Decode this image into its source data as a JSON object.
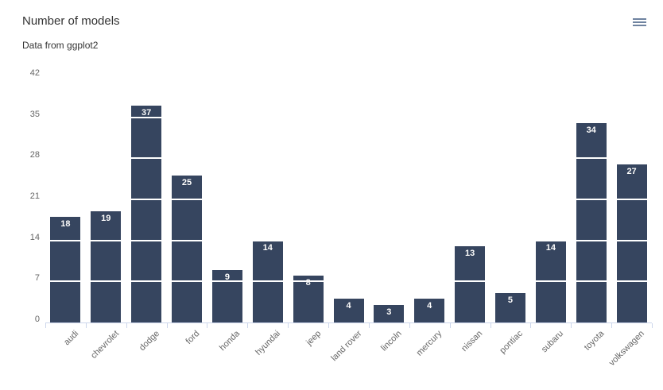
{
  "header": {
    "context_menu_tooltip": "Chart context menu"
  },
  "icons": {
    "menu": "hamburger-menu-icon"
  },
  "colors": {
    "bar": "#36455f",
    "axis_line": "#ccd6eb",
    "grid_line": "#ffffff",
    "title_text": "#333333",
    "axis_label_text": "#666666",
    "data_label_text": "#ffffff",
    "menu_icon": "#6f83a0",
    "background": "#ffffff"
  },
  "chart_data": {
    "type": "bar",
    "title": "Number of models",
    "subtitle": "Data from ggplot2",
    "categories": [
      "audi",
      "chevrolet",
      "dodge",
      "ford",
      "honda",
      "hyundai",
      "jeep",
      "land rover",
      "lincoln",
      "mercury",
      "nissan",
      "pontiac",
      "subaru",
      "toyota",
      "volkswagen"
    ],
    "values": [
      18,
      19,
      37,
      25,
      9,
      14,
      8,
      4,
      3,
      4,
      13,
      5,
      14,
      34,
      27
    ],
    "xlabel": "",
    "ylabel": "",
    "ylim": [
      0,
      42
    ],
    "y_ticks": [
      0,
      7,
      14,
      21,
      28,
      35,
      42
    ],
    "grid": true,
    "grid_style": "white lines drawn over bars",
    "legend": "none",
    "x_label_rotation": -45,
    "data_labels": "white bold values inside top of each bar"
  }
}
